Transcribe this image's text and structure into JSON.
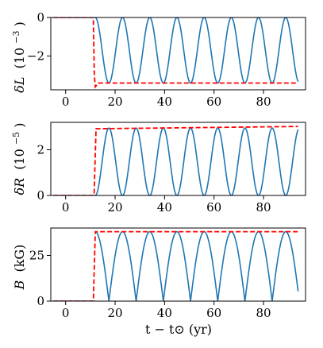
{
  "colors": {
    "oscillation": "#1f77b4",
    "envelope": "#ff0000",
    "axes": "#000000",
    "background": "#ffffff"
  },
  "chart_data": [
    {
      "type": "line",
      "ylabel_main": "δL",
      "ylabel_unit": "(10",
      "ylabel_exp": "−3",
      "ylabel_close": ")",
      "xlim": [
        -6,
        97
      ],
      "ylim": [
        -3.75,
        0
      ],
      "xticks": [
        0,
        20,
        40,
        60,
        80
      ],
      "xtick_labels": [
        "0",
        "20",
        "40",
        "60",
        "80"
      ],
      "yticks": [
        0,
        -2
      ],
      "ytick_labels": [
        "0",
        "−2"
      ],
      "oscillation": {
        "onset": 12,
        "period": 11,
        "min": -3.4,
        "max": 0,
        "x_end": 94
      },
      "series": [
        {
          "style": "solid",
          "x": [
            -5,
            12
          ],
          "y": [
            0,
            0
          ]
        },
        {
          "style": "dashed",
          "x": [
            -5,
            11.2,
            11.6,
            12.0,
            13.2,
            94
          ],
          "y": [
            0,
            0,
            -3.0,
            -3.6,
            -3.4,
            -3.4
          ]
        }
      ]
    },
    {
      "type": "line",
      "ylabel_main": "δR",
      "ylabel_unit": "(10",
      "ylabel_exp": "−5",
      "ylabel_close": ")",
      "xlim": [
        -6,
        97
      ],
      "ylim": [
        0,
        3.2
      ],
      "xticks": [
        0,
        20,
        40,
        60,
        80
      ],
      "xtick_labels": [
        "0",
        "20",
        "40",
        "60",
        "80"
      ],
      "yticks": [
        0,
        2
      ],
      "ytick_labels": [
        "0",
        "2"
      ],
      "oscillation": {
        "onset": 12,
        "period": 11,
        "min": 0,
        "max": 2.95,
        "x_end": 94
      },
      "series": [
        {
          "style": "solid",
          "x": [
            -5,
            12
          ],
          "y": [
            0,
            0
          ]
        },
        {
          "style": "dashed",
          "x": [
            -5,
            11.5,
            12.3,
            94
          ],
          "y": [
            0,
            0,
            2.92,
            3.02
          ]
        }
      ]
    },
    {
      "type": "line",
      "ylabel_main": "B",
      "ylabel_unit": "(kG)",
      "ylabel_exp": "",
      "ylabel_close": "",
      "xlabel": "t − t⊙ (yr)",
      "xlim": [
        -6,
        97
      ],
      "ylim": [
        0,
        40
      ],
      "xticks": [
        0,
        20,
        40,
        60,
        80
      ],
      "xtick_labels": [
        "0",
        "20",
        "40",
        "60",
        "80"
      ],
      "yticks": [
        0,
        25
      ],
      "ytick_labels": [
        "0",
        "25"
      ],
      "oscillation": {
        "onset": 12,
        "period": 11,
        "min": 0,
        "max": 38,
        "x_end": 94,
        "abs_cosine": true
      },
      "series": [
        {
          "style": "solid",
          "x": [
            -5,
            12
          ],
          "y": [
            0,
            0
          ]
        },
        {
          "style": "dashed",
          "x": [
            -5,
            11.2,
            12.0,
            94
          ],
          "y": [
            0,
            0,
            38,
            38
          ]
        }
      ]
    }
  ]
}
